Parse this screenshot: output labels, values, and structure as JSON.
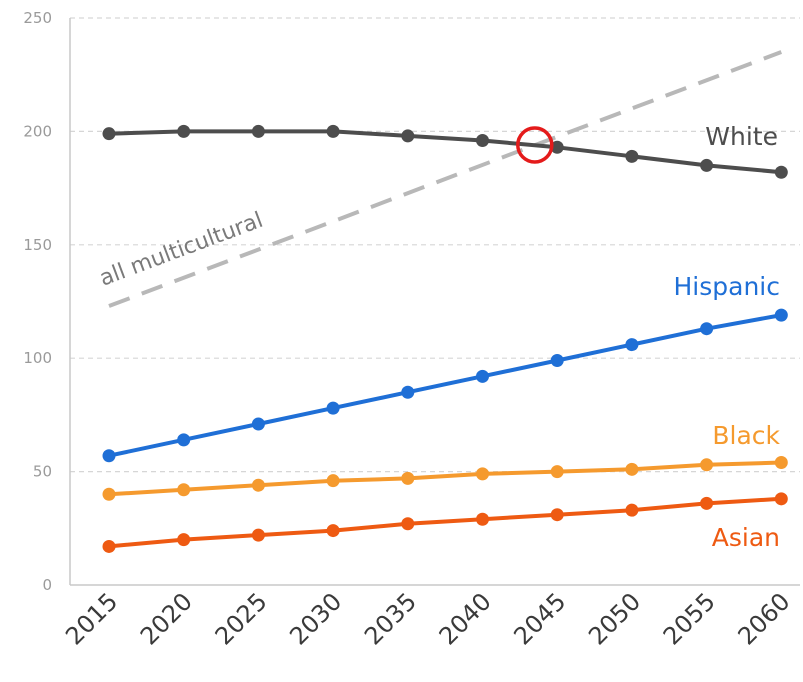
{
  "chart_data": {
    "type": "line",
    "x": [
      "2015",
      "2020",
      "2025",
      "2030",
      "2035",
      "2040",
      "2045",
      "2050",
      "2055",
      "2060"
    ],
    "ylim": [
      0,
      250
    ],
    "yticks": [
      0,
      50,
      100,
      150,
      200,
      250
    ],
    "grid": "horizontal dashed",
    "legend": "direct labels",
    "series": [
      {
        "name": "White",
        "color": "#4d4d4d",
        "values": [
          199,
          200,
          200,
          200,
          198,
          196,
          193,
          189,
          185,
          182
        ]
      },
      {
        "name": "Hispanic",
        "color": "#1f6fd6",
        "values": [
          57,
          64,
          71,
          78,
          85,
          92,
          99,
          106,
          113,
          119
        ]
      },
      {
        "name": "Black",
        "color": "#f59a2e",
        "values": [
          40,
          42,
          44,
          46,
          47,
          49,
          50,
          51,
          53,
          54
        ]
      },
      {
        "name": "Asian",
        "color": "#ee5a12",
        "values": [
          17,
          20,
          22,
          24,
          27,
          29,
          31,
          33,
          36,
          38
        ]
      }
    ],
    "dashed_series": {
      "name": "all multicultural",
      "color": "#b8b8b8",
      "x": [
        "2015",
        "2060"
      ],
      "values": [
        123,
        235
      ]
    },
    "annotation": {
      "type": "circle",
      "x": 2043.5,
      "y": 194,
      "color": "#e41b1b"
    }
  }
}
